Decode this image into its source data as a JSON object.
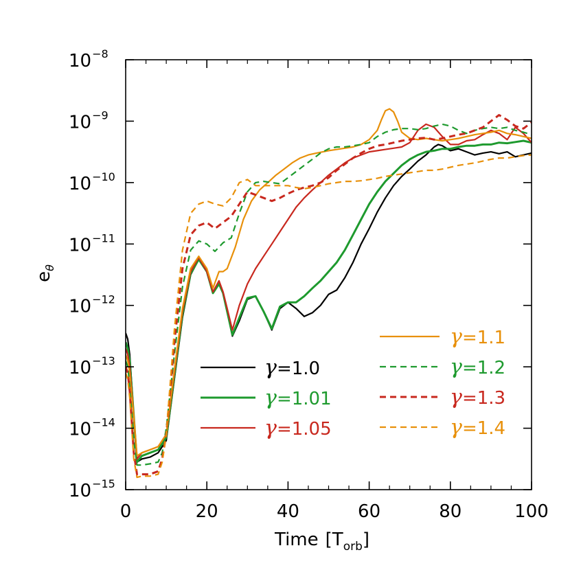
{
  "chart_data": {
    "type": "line",
    "title": "",
    "xlabel": "Time",
    "xlabel_unit": "T",
    "xlabel_unit_sub": "orb",
    "ylabel": "e",
    "ylabel_sub": "θ",
    "xlim": [
      0,
      100
    ],
    "ylim_log10": [
      -15,
      -8
    ],
    "yscale": "log",
    "x_ticks": [
      0,
      20,
      40,
      60,
      80,
      100
    ],
    "x_tick_labels": [
      "0",
      "20",
      "40",
      "60",
      "80",
      "100"
    ],
    "y_ticks_log10": [
      -15,
      -14,
      -13,
      -12,
      -11,
      -10,
      -9,
      -8
    ],
    "y_tick_base": "10",
    "y_tick_exponents": [
      "−15",
      "−14",
      "−13",
      "−12",
      "−11",
      "−10",
      "−9",
      "−8"
    ],
    "legend_symbol": "γ",
    "series": [
      {
        "name": "γ=1.0",
        "value_label": "=1.0",
        "color": "#000000",
        "dash": "solid",
        "width": 2.2,
        "x": [
          0,
          0.5,
          1,
          2,
          2.8,
          4,
          6,
          8,
          9,
          10,
          12,
          14,
          16,
          18,
          20,
          21.5,
          23,
          24,
          25,
          26.3,
          28,
          30,
          32,
          34,
          36,
          38,
          40,
          42,
          44,
          46,
          48,
          50,
          52,
          54,
          56,
          58,
          60,
          62,
          64,
          66,
          68,
          70,
          72,
          74,
          76,
          77,
          78,
          80,
          82,
          84,
          86,
          88,
          90,
          92,
          94,
          96,
          98,
          100
        ],
        "y": [
          -12.45,
          -12.55,
          -12.8,
          -13.8,
          -14.55,
          -14.5,
          -14.47,
          -14.4,
          -14.3,
          -14.2,
          -13.2,
          -12.2,
          -11.5,
          -11.25,
          -11.45,
          -11.8,
          -11.65,
          -11.8,
          -12.1,
          -12.5,
          -12.25,
          -11.9,
          -11.85,
          -12.1,
          -12.4,
          -12.05,
          -11.95,
          -12.05,
          -12.18,
          -12.12,
          -12.0,
          -11.82,
          -11.75,
          -11.55,
          -11.3,
          -11.0,
          -10.75,
          -10.48,
          -10.25,
          -10.05,
          -9.9,
          -9.78,
          -9.65,
          -9.55,
          -9.42,
          -9.38,
          -9.4,
          -9.48,
          -9.45,
          -9.5,
          -9.55,
          -9.52,
          -9.5,
          -9.53,
          -9.5,
          -9.58,
          -9.55,
          -9.52
        ]
      },
      {
        "name": "γ=1.01",
        "value_label": "=1.01",
        "color": "#1e9a2e",
        "dash": "solid",
        "width": 3,
        "x": [
          0,
          0.5,
          1,
          2,
          2.8,
          4,
          6,
          8,
          9,
          10,
          12,
          14,
          16,
          18,
          20,
          21.5,
          23,
          24,
          25,
          26.3,
          28,
          30,
          32,
          34,
          36,
          38,
          40,
          42,
          44,
          46,
          48,
          50,
          52,
          54,
          56,
          58,
          60,
          62,
          64,
          66,
          68,
          70,
          72,
          74,
          76,
          78,
          80,
          82,
          84,
          86,
          88,
          90,
          92,
          94,
          96,
          98,
          100
        ],
        "y": [
          -12.6,
          -12.7,
          -12.9,
          -13.8,
          -14.55,
          -14.45,
          -14.4,
          -14.35,
          -14.25,
          -14.15,
          -13.15,
          -12.15,
          -11.48,
          -11.25,
          -11.45,
          -11.8,
          -11.65,
          -11.8,
          -12.1,
          -12.48,
          -12.2,
          -11.88,
          -11.85,
          -12.1,
          -12.38,
          -12.02,
          -11.95,
          -11.95,
          -11.85,
          -11.72,
          -11.6,
          -11.45,
          -11.3,
          -11.1,
          -10.85,
          -10.6,
          -10.35,
          -10.15,
          -9.98,
          -9.85,
          -9.72,
          -9.62,
          -9.55,
          -9.5,
          -9.48,
          -9.45,
          -9.45,
          -9.42,
          -9.4,
          -9.4,
          -9.38,
          -9.38,
          -9.35,
          -9.36,
          -9.34,
          -9.32,
          -9.35
        ]
      },
      {
        "name": "γ=1.05",
        "value_label": "=1.05",
        "color": "#c8281e",
        "dash": "solid",
        "width": 2.2,
        "x": [
          0,
          0.5,
          1,
          2,
          2.8,
          4,
          6,
          8,
          9,
          10,
          12,
          14,
          16,
          18,
          20,
          21.5,
          23,
          24,
          25,
          26.3,
          28,
          30,
          32,
          34,
          36,
          38,
          40,
          42,
          44,
          46,
          48,
          50,
          52,
          54,
          56,
          58,
          60,
          62,
          64,
          66,
          68,
          70,
          72,
          74,
          76,
          78,
          80,
          82,
          84,
          86,
          88,
          90,
          92,
          94,
          96,
          98,
          100
        ],
        "y": [
          -12.7,
          -12.8,
          -13.0,
          -13.8,
          -14.5,
          -14.4,
          -14.35,
          -14.3,
          -14.2,
          -14.1,
          -13.1,
          -12.1,
          -11.45,
          -11.22,
          -11.45,
          -11.78,
          -11.6,
          -11.78,
          -12.05,
          -12.4,
          -12.0,
          -11.65,
          -11.4,
          -11.2,
          -11.0,
          -10.8,
          -10.6,
          -10.4,
          -10.25,
          -10.12,
          -10.0,
          -9.88,
          -9.78,
          -9.68,
          -9.6,
          -9.55,
          -9.5,
          -9.48,
          -9.46,
          -9.44,
          -9.42,
          -9.35,
          -9.15,
          -9.05,
          -9.1,
          -9.25,
          -9.38,
          -9.38,
          -9.32,
          -9.3,
          -9.22,
          -9.15,
          -9.2,
          -9.3,
          -9.1,
          -9.2,
          -9.35
        ]
      },
      {
        "name": "γ=1.1",
        "value_label": "=1.1",
        "color": "#e8900a",
        "dash": "solid",
        "width": 2.2,
        "x": [
          0,
          0.5,
          1,
          2,
          2.8,
          4,
          6,
          8,
          9,
          10,
          12,
          14,
          16,
          18,
          20,
          21.5,
          23,
          24,
          25,
          27,
          29,
          31,
          33,
          35,
          37,
          39,
          41,
          43,
          45,
          47,
          50,
          53,
          56,
          58,
          60,
          62,
          63,
          64,
          65,
          66,
          67,
          68,
          70,
          72,
          74,
          76,
          78,
          80,
          82,
          84,
          86,
          88,
          90,
          92,
          94,
          96,
          98,
          100
        ],
        "y": [
          -12.8,
          -12.9,
          -13.1,
          -13.8,
          -14.45,
          -14.4,
          -14.35,
          -14.3,
          -14.2,
          -14.1,
          -13.05,
          -12.05,
          -11.4,
          -11.2,
          -11.4,
          -11.72,
          -11.45,
          -11.45,
          -11.4,
          -11.05,
          -10.6,
          -10.3,
          -10.12,
          -10.0,
          -9.88,
          -9.78,
          -9.68,
          -9.6,
          -9.55,
          -9.52,
          -9.48,
          -9.45,
          -9.42,
          -9.38,
          -9.3,
          -9.15,
          -8.98,
          -8.83,
          -8.8,
          -8.85,
          -9.0,
          -9.18,
          -9.28,
          -9.3,
          -9.28,
          -9.3,
          -9.32,
          -9.3,
          -9.28,
          -9.25,
          -9.22,
          -9.2,
          -9.18,
          -9.15,
          -9.2,
          -9.22,
          -9.25,
          -9.28
        ]
      },
      {
        "name": "γ=1.2",
        "value_label": "=1.2",
        "color": "#1e9a2e",
        "dash": "dashed",
        "width": 2.2,
        "x": [
          0,
          0.5,
          1,
          2,
          2.8,
          4,
          6,
          8,
          9,
          10,
          12,
          14,
          16,
          18,
          20,
          22,
          24,
          26,
          28,
          30,
          32,
          34,
          36,
          38,
          40,
          42,
          44,
          46,
          48,
          50,
          52,
          54,
          56,
          58,
          60,
          62,
          64,
          66,
          68,
          70,
          72,
          74,
          76,
          78,
          80,
          82,
          84,
          86,
          88,
          90,
          92,
          94,
          96,
          98,
          100
        ],
        "y": [
          -12.9,
          -13.0,
          -13.3,
          -14.2,
          -14.6,
          -14.6,
          -14.58,
          -14.55,
          -14.4,
          -14.0,
          -12.8,
          -11.7,
          -11.1,
          -10.95,
          -11.0,
          -11.12,
          -10.98,
          -10.9,
          -10.5,
          -10.15,
          -10.0,
          -9.98,
          -10.0,
          -10.02,
          -9.92,
          -9.82,
          -9.72,
          -9.62,
          -9.52,
          -9.45,
          -9.42,
          -9.42,
          -9.4,
          -9.38,
          -9.35,
          -9.25,
          -9.18,
          -9.14,
          -9.12,
          -9.12,
          -9.14,
          -9.12,
          -9.08,
          -9.05,
          -9.08,
          -9.15,
          -9.2,
          -9.15,
          -9.12,
          -9.1,
          -9.12,
          -9.1,
          -9.15,
          -9.18,
          -9.22
        ]
      },
      {
        "name": "γ=1.3",
        "value_label": "=1.3",
        "color": "#c8281e",
        "dash": "dashed",
        "width": 3,
        "x": [
          0,
          0.5,
          1,
          2,
          2.8,
          4,
          6,
          8,
          9,
          10,
          12,
          14,
          16,
          18,
          20,
          22,
          24,
          26,
          28,
          30,
          32,
          34,
          36,
          38,
          40,
          42,
          44,
          46,
          48,
          50,
          52,
          54,
          56,
          58,
          60,
          62,
          64,
          66,
          68,
          70,
          72,
          74,
          76,
          78,
          80,
          82,
          84,
          86,
          88,
          90,
          92,
          94,
          96,
          98,
          100
        ],
        "y": [
          -13.0,
          -13.1,
          -13.4,
          -14.4,
          -14.75,
          -14.75,
          -14.75,
          -14.7,
          -14.5,
          -14.1,
          -12.6,
          -11.4,
          -10.85,
          -10.7,
          -10.65,
          -10.75,
          -10.65,
          -10.55,
          -10.35,
          -10.15,
          -10.2,
          -10.25,
          -10.3,
          -10.25,
          -10.18,
          -10.12,
          -10.08,
          -10.05,
          -10.0,
          -9.92,
          -9.8,
          -9.7,
          -9.6,
          -9.52,
          -9.45,
          -9.4,
          -9.38,
          -9.35,
          -9.32,
          -9.3,
          -9.28,
          -9.27,
          -9.3,
          -9.28,
          -9.25,
          -9.22,
          -9.2,
          -9.15,
          -9.1,
          -9.0,
          -8.9,
          -8.98,
          -9.08,
          -9.12,
          -9.02
        ]
      },
      {
        "name": "γ=1.4",
        "value_label": "=1.4",
        "color": "#e8900a",
        "dash": "dashed",
        "width": 2.2,
        "x": [
          0,
          0.5,
          1,
          2,
          2.8,
          4,
          6,
          8,
          9,
          10,
          12,
          14,
          16,
          18,
          20,
          22,
          24,
          26,
          28,
          30,
          32,
          34,
          36,
          38,
          40,
          42,
          44,
          46,
          48,
          50,
          52,
          54,
          56,
          58,
          60,
          62,
          64,
          66,
          68,
          70,
          72,
          74,
          76,
          78,
          80,
          82,
          84,
          86,
          88,
          90,
          92,
          94,
          96,
          98,
          100
        ],
        "y": [
          -13.1,
          -13.2,
          -13.5,
          -14.5,
          -14.8,
          -14.78,
          -14.78,
          -14.75,
          -14.55,
          -14.1,
          -12.4,
          -11.1,
          -10.5,
          -10.35,
          -10.3,
          -10.35,
          -10.38,
          -10.25,
          -10.0,
          -9.95,
          -10.05,
          -10.05,
          -10.05,
          -10.05,
          -10.05,
          -10.08,
          -10.1,
          -10.08,
          -10.05,
          -10.02,
          -10.0,
          -9.98,
          -9.98,
          -9.97,
          -9.95,
          -9.93,
          -9.9,
          -9.88,
          -9.86,
          -9.84,
          -9.82,
          -9.8,
          -9.8,
          -9.78,
          -9.75,
          -9.72,
          -9.7,
          -9.68,
          -9.65,
          -9.62,
          -9.6,
          -9.6,
          -9.58,
          -9.56,
          -9.55
        ]
      }
    ]
  }
}
